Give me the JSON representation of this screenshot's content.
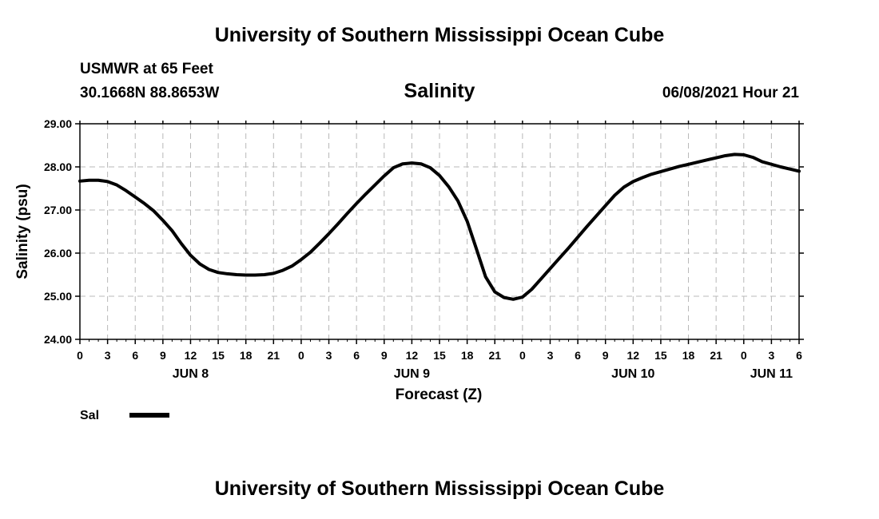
{
  "header": {
    "title": "University of Southern Mississippi Ocean Cube",
    "station": "USMWR at 65 Feet",
    "coordinates": "30.1668N  88.8653W",
    "variable": "Salinity",
    "datestamp": "06/08/2021 Hour 21"
  },
  "footer": {
    "title": "University of Southern Mississippi Ocean Cube"
  },
  "chart_data": {
    "type": "line",
    "title": "Salinity",
    "xlabel": "Forecast (Z)",
    "ylabel": "Salinity (psu)",
    "xlim": [
      0,
      78
    ],
    "ylim": [
      24.0,
      29.0
    ],
    "grid": true,
    "legend_position": "bottom-left",
    "y_ticks": [
      "24.00",
      "25.00",
      "26.00",
      "27.00",
      "28.00",
      "29.00"
    ],
    "x_tick_labels": [
      "0",
      "3",
      "6",
      "9",
      "12",
      "15",
      "18",
      "21",
      "0",
      "3",
      "6",
      "9",
      "12",
      "15",
      "18",
      "21",
      "0",
      "3",
      "6",
      "9",
      "12",
      "15",
      "18",
      "21",
      "0",
      "3",
      "6"
    ],
    "day_labels": [
      {
        "label": "JUN 8",
        "hour": 12
      },
      {
        "label": "JUN 9",
        "hour": 36
      },
      {
        "label": "JUN 10",
        "hour": 60
      },
      {
        "label": "JUN 11",
        "hour": 75
      }
    ],
    "series": [
      {
        "name": "Sal",
        "color": "#000000",
        "x": [
          0,
          1,
          2,
          3,
          4,
          5,
          6,
          7,
          8,
          9,
          10,
          11,
          12,
          13,
          14,
          15,
          16,
          17,
          18,
          19,
          20,
          21,
          22,
          23,
          24,
          25,
          26,
          27,
          28,
          29,
          30,
          31,
          32,
          33,
          34,
          35,
          36,
          37,
          38,
          39,
          40,
          41,
          42,
          43,
          44,
          45,
          46,
          47,
          48,
          49,
          50,
          51,
          52,
          53,
          54,
          55,
          56,
          57,
          58,
          59,
          60,
          61,
          62,
          63,
          64,
          65,
          66,
          67,
          68,
          69,
          70,
          71,
          72,
          73,
          74,
          75,
          76,
          77,
          78
        ],
        "values": [
          27.67,
          27.69,
          27.69,
          27.66,
          27.58,
          27.45,
          27.3,
          27.15,
          26.98,
          26.76,
          26.52,
          26.22,
          25.95,
          25.75,
          25.62,
          25.55,
          25.52,
          25.5,
          25.49,
          25.49,
          25.5,
          25.53,
          25.6,
          25.7,
          25.85,
          26.02,
          26.23,
          26.45,
          26.68,
          26.92,
          27.15,
          27.37,
          27.58,
          27.79,
          27.98,
          28.07,
          28.09,
          28.07,
          27.98,
          27.8,
          27.54,
          27.21,
          26.74,
          26.1,
          25.45,
          25.1,
          24.97,
          24.93,
          24.98,
          25.16,
          25.4,
          25.64,
          25.88,
          26.12,
          26.37,
          26.62,
          26.86,
          27.1,
          27.34,
          27.53,
          27.66,
          27.75,
          27.83,
          27.89,
          27.95,
          28.01,
          28.06,
          28.11,
          28.16,
          28.21,
          28.26,
          28.29,
          28.28,
          28.22,
          28.12,
          28.06,
          28.0,
          27.95,
          27.9
        ]
      }
    ]
  }
}
